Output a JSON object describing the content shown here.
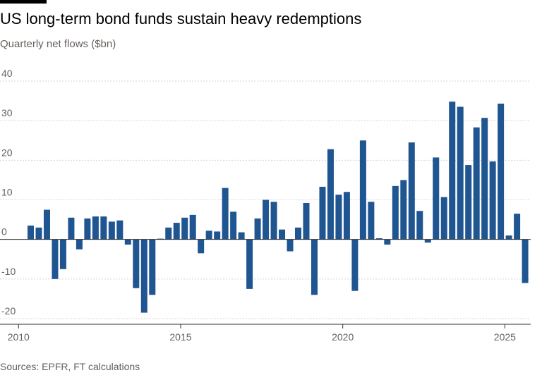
{
  "title": "US long-term bond funds sustain heavy redemptions",
  "subtitle": "Quarterly net flows ($bn)",
  "source": "Sources: EPFR, FT calculations",
  "colors": {
    "bar": "#1f5591",
    "grid": "#d9d4cf",
    "zero": "#33302e",
    "text": "#66605c"
  },
  "chart_data": {
    "type": "bar",
    "title": "US long-term bond funds sustain heavy redemptions",
    "subtitle": "Quarterly net flows ($bn)",
    "xlabel": "",
    "ylabel": "",
    "ylim": [
      -20,
      40
    ],
    "yticks": [
      -20,
      -10,
      0,
      10,
      20,
      30,
      40
    ],
    "xticks": [
      {
        "label": "2010",
        "year": 2010
      },
      {
        "label": "2015",
        "year": 2015
      },
      {
        "label": "2020",
        "year": 2020
      },
      {
        "label": "2025",
        "year": 2025
      }
    ],
    "grid": true,
    "legend": "none",
    "start": "2010 Q1",
    "categories": [
      "2010 Q1",
      "2010 Q2",
      "2010 Q3",
      "2010 Q4",
      "2011 Q1",
      "2011 Q2",
      "2011 Q3",
      "2011 Q4",
      "2012 Q1",
      "2012 Q2",
      "2012 Q3",
      "2012 Q4",
      "2013 Q1",
      "2013 Q2",
      "2013 Q3",
      "2013 Q4",
      "2014 Q1",
      "2014 Q2",
      "2014 Q3",
      "2014 Q4",
      "2015 Q1",
      "2015 Q2",
      "2015 Q3",
      "2015 Q4",
      "2016 Q1",
      "2016 Q2",
      "2016 Q3",
      "2016 Q4",
      "2017 Q1",
      "2017 Q2",
      "2017 Q3",
      "2017 Q4",
      "2018 Q1",
      "2018 Q2",
      "2018 Q3",
      "2018 Q4",
      "2019 Q1",
      "2019 Q2",
      "2019 Q3",
      "2019 Q4",
      "2020 Q1",
      "2020 Q2",
      "2020 Q3",
      "2020 Q4",
      "2021 Q1",
      "2021 Q2",
      "2021 Q3",
      "2021 Q4",
      "2022 Q1",
      "2022 Q2",
      "2022 Q3",
      "2022 Q4",
      "2023 Q1",
      "2023 Q2",
      "2023 Q3",
      "2023 Q4",
      "2024 Q1",
      "2024 Q2",
      "2024 Q3",
      "2024 Q4",
      "2025 Q1",
      "2025 Q2"
    ],
    "values": [
      3.5,
      3.0,
      7.5,
      -10.0,
      -7.5,
      5.5,
      -2.5,
      5.3,
      5.8,
      5.8,
      4.5,
      4.8,
      -1.3,
      -12.3,
      -18.5,
      -14.0,
      0.2,
      3.0,
      4.2,
      5.5,
      6.2,
      -3.5,
      2.2,
      2.0,
      13.0,
      7.0,
      1.8,
      -12.5,
      5.3,
      10.0,
      9.5,
      2.5,
      -3.0,
      3.0,
      9.2,
      -14.0,
      13.3,
      22.8,
      11.3,
      12.0,
      -13.0,
      25.0,
      9.5,
      0.3,
      -1.3,
      13.5,
      15.0,
      24.5,
      7.2,
      -0.8,
      20.7,
      10.7,
      34.8,
      33.5,
      18.8,
      28.3,
      30.7,
      19.7,
      34.3,
      1.0,
      6.5,
      -11.0
    ]
  }
}
